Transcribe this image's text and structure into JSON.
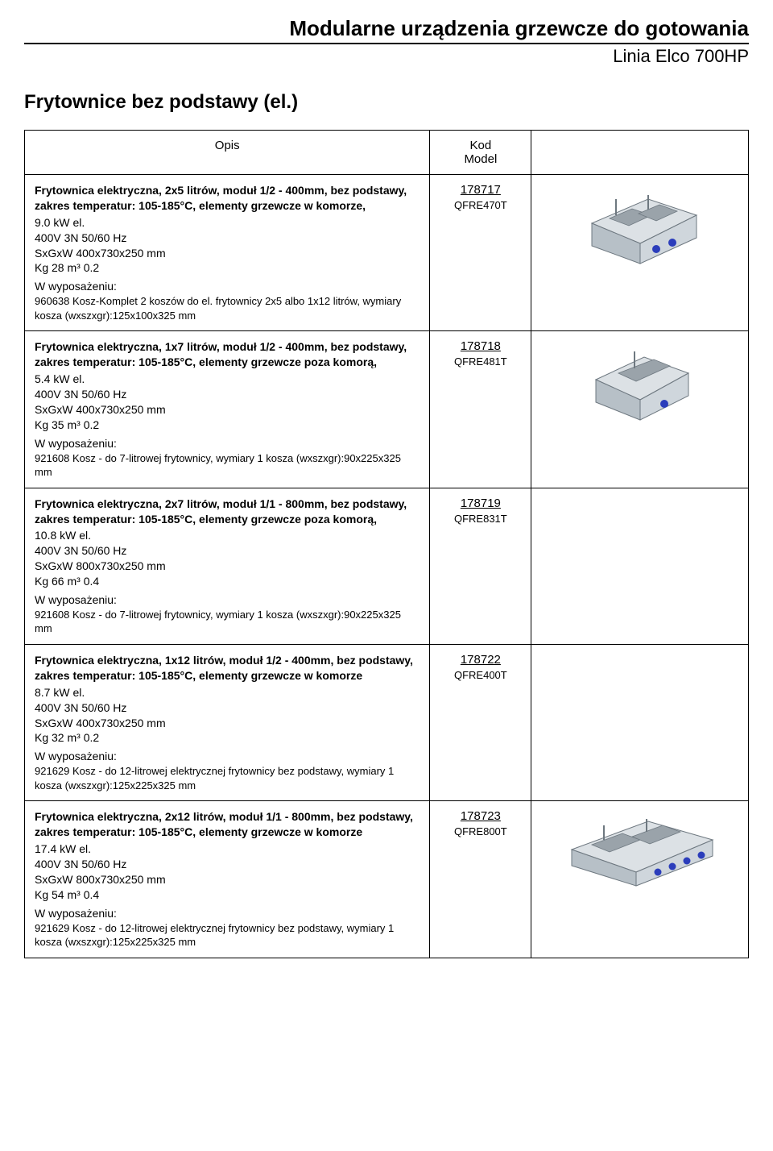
{
  "header": {
    "main_title": "Modularne urządzenia grzewcze do gotowania",
    "subtitle": "Linia Elco 700HP"
  },
  "section_title": "Frytownice bez podstawy (el.)",
  "table": {
    "columns": {
      "opis": "Opis",
      "kod": "Kod\nModel"
    },
    "rows": [
      {
        "title": "Frytownica elektryczna, 2x5 litrów, moduł 1/2 - 400mm, bez podstawy, zakres temperatur: 105-185°C, elementy grzewcze w komorze,",
        "power": "9.0 kW el.",
        "voltage": "400V   3N 50/60 Hz",
        "dims": "SxGxW 400x730x250 mm",
        "weight": "Kg 28    m³ 0.2",
        "wyp_label": "W wyposażeniu:",
        "wyp_item": "960638   Kosz-Komplet 2 koszów do el. frytownicy 2x5 albo 1x12 litrów, wymiary kosza (wxszxgr):125x100x325 mm",
        "code": "178717",
        "model": "QFRE470T",
        "image": "double"
      },
      {
        "title": "Frytownica elektryczna, 1x7 litrów, moduł 1/2 - 400mm, bez podstawy, zakres temperatur: 105-185°C, elementy grzewcze poza komorą,",
        "power": "5.4 kW el.",
        "voltage": "400V   3N 50/60 Hz",
        "dims": "SxGxW 400x730x250 mm",
        "weight": "Kg 35    m³ 0.2",
        "wyp_label": "W wyposażeniu:",
        "wyp_item": "921608   Kosz - do 7-litrowej frytownicy, wymiary 1 kosza (wxszxgr):90x225x325 mm",
        "code": "178718",
        "model": "QFRE481T",
        "image": "single"
      },
      {
        "title": "Frytownica elektryczna, 2x7 litrów, moduł 1/1 - 800mm, bez podstawy, zakres temperatur: 105-185°C, elementy grzewcze poza komorą,",
        "power": "10.8 kW el.",
        "voltage": "400V   3N 50/60 Hz",
        "dims": "SxGxW 800x730x250 mm",
        "weight": "Kg 66    m³ 0.4",
        "wyp_label": "W wyposażeniu:",
        "wyp_item": "921608   Kosz - do 7-litrowej frytownicy, wymiary 1 kosza (wxszxgr):90x225x325 mm",
        "code": "178719",
        "model": "QFRE831T",
        "image": null
      },
      {
        "title": "Frytownica elektryczna, 1x12 litrów, moduł 1/2 - 400mm, bez podstawy, zakres temperatur: 105-185°C, elementy grzewcze w komorze",
        "power": "8.7 kW el.",
        "voltage": "400V   3N 50/60 Hz",
        "dims": "SxGxW 400x730x250 mm",
        "weight": "Kg 32    m³ 0.2",
        "wyp_label": "W wyposażeniu:",
        "wyp_item": "921629    Kosz - do 12-litrowej elektrycznej frytownicy bez podstawy, wymiary 1 kosza (wxszxgr):125x225x325 mm",
        "code": "178722",
        "model": "QFRE400T",
        "image": null
      },
      {
        "title": "Frytownica elektryczna, 2x12 litrów, moduł 1/1 - 800mm, bez podstawy, zakres temperatur: 105-185°C, elementy grzewcze w komorze",
        "power": "17.4 kW el.",
        "voltage": "400V   3N 50/60 Hz",
        "dims": "SxGxW 800x730x250 mm",
        "weight": "Kg 54    m³ 0.4",
        "wyp_label": "W wyposażeniu:",
        "wyp_item": "921629    Kosz - do 12-litrowej elektrycznej frytownicy bez podstawy, wymiary 1 kosza (wxszxgr):125x225x325 mm",
        "code": "178723",
        "model": "QFRE800T",
        "image": "wide"
      }
    ]
  },
  "style": {
    "colors": {
      "text": "#000000",
      "background": "#ffffff",
      "border": "#000000",
      "fryer_body": "#dce1e5",
      "fryer_body_dark": "#b7c0c7",
      "fryer_basket": "#9aa3aa",
      "fryer_panel": "#cfd6dc",
      "fryer_knob_blue": "#2b3dbb",
      "fryer_outline": "#6e7880"
    },
    "fonts": {
      "base": 14,
      "title": 26,
      "subtitle": 22,
      "section": 24
    }
  }
}
